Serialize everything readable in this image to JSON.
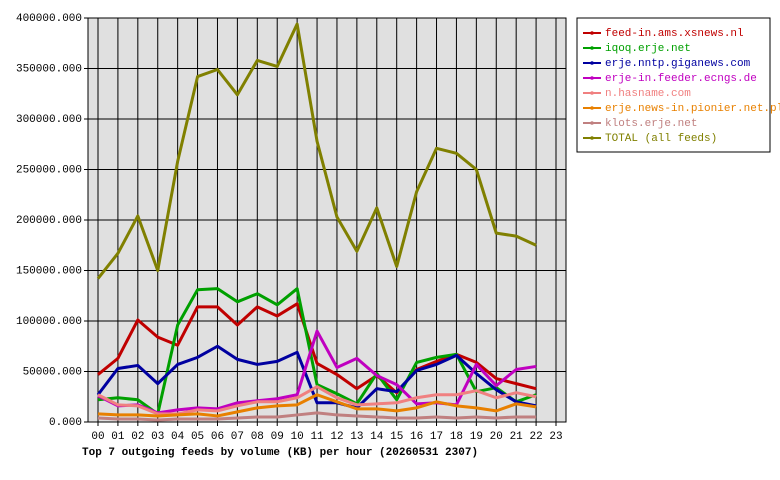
{
  "chart_data": {
    "type": "line",
    "title": "Top 7 outgoing feeds by volume (KB) per hour (20260531 2307)",
    "categories": [
      "00",
      "01",
      "02",
      "03",
      "04",
      "05",
      "06",
      "07",
      "08",
      "09",
      "10",
      "11",
      "12",
      "13",
      "14",
      "15",
      "16",
      "17",
      "18",
      "19",
      "20",
      "21",
      "22",
      "23"
    ],
    "series": [
      {
        "name": "feed-in.ams.xsnews.nl",
        "color": "#c00000",
        "values": [
          47000,
          63000,
          101000,
          84000,
          76000,
          114000,
          114000,
          96000,
          114000,
          105000,
          117000,
          58000,
          47000,
          33000,
          46000,
          29000,
          52000,
          60000,
          67000,
          59000,
          43000,
          38000,
          33000,
          null
        ]
      },
      {
        "name": "iqoq.erje.net",
        "color": "#00a000",
        "values": [
          22000,
          24000,
          22000,
          8000,
          96000,
          131000,
          132000,
          119000,
          127000,
          116000,
          132000,
          37000,
          28000,
          18000,
          48000,
          22000,
          59000,
          64000,
          67000,
          30000,
          34000,
          20000,
          27000,
          null
        ]
      },
      {
        "name": "erje.nntp.giganews.com",
        "color": "#0000a0",
        "values": [
          27000,
          53000,
          56000,
          38000,
          57000,
          64000,
          75000,
          62000,
          57000,
          60000,
          69000,
          19000,
          19000,
          14000,
          33000,
          30000,
          51000,
          57000,
          66000,
          48000,
          32000,
          20000,
          16000,
          null
        ]
      },
      {
        "name": "erje-in.feeder.ecngs.de",
        "color": "#c000c0",
        "values": [
          26000,
          16000,
          17000,
          9000,
          12000,
          14000,
          13000,
          19000,
          21000,
          23000,
          27000,
          90000,
          54000,
          63000,
          46000,
          37000,
          18000,
          19000,
          17000,
          57000,
          36000,
          52000,
          55000,
          null
        ]
      },
      {
        "name": "n.hasname.com",
        "color": "#f08080",
        "values": [
          27000,
          17000,
          16000,
          8000,
          8000,
          12000,
          11000,
          16000,
          20000,
          20000,
          24000,
          35000,
          24000,
          17000,
          18000,
          19000,
          24000,
          27000,
          27000,
          31000,
          24000,
          29000,
          25000,
          null
        ]
      },
      {
        "name": "erje.news-in.pionier.net.pl",
        "color": "#e88000",
        "values": [
          8000,
          7000,
          7000,
          6000,
          7000,
          8000,
          6000,
          10000,
          14000,
          16000,
          17000,
          27000,
          20000,
          13000,
          13000,
          11000,
          14000,
          20000,
          16000,
          14000,
          11000,
          18000,
          15000,
          null
        ]
      },
      {
        "name": "klots.erje.net",
        "color": "#c08080",
        "values": [
          4000,
          3000,
          3000,
          2000,
          3000,
          3000,
          3000,
          4000,
          5000,
          5000,
          7000,
          9000,
          7000,
          6000,
          5000,
          4000,
          4000,
          5000,
          4000,
          5000,
          4000,
          5000,
          5000,
          null
        ]
      },
      {
        "name": "TOTAL (all feeds)",
        "color": "#808000",
        "values": [
          142000,
          167000,
          204000,
          150000,
          258000,
          342000,
          349000,
          324000,
          358000,
          352000,
          394000,
          278000,
          203000,
          169000,
          212000,
          154000,
          228000,
          271000,
          266000,
          250000,
          187000,
          184000,
          175000,
          null
        ]
      }
    ],
    "ylim": [
      0,
      400000
    ],
    "yticks": [
      {
        "value": 0,
        "label": "0.000"
      },
      {
        "value": 50000,
        "label": "50000.000"
      },
      {
        "value": 100000,
        "label": "100000.000"
      },
      {
        "value": 150000,
        "label": "150000.000"
      },
      {
        "value": 200000,
        "label": "200000.000"
      },
      {
        "value": 250000,
        "label": "250000.000"
      },
      {
        "value": 300000,
        "label": "300000.000"
      },
      {
        "value": 350000,
        "label": "350000.000"
      },
      {
        "value": 400000,
        "label": "400000.000"
      }
    ],
    "grid": true,
    "legend": "outside right"
  }
}
